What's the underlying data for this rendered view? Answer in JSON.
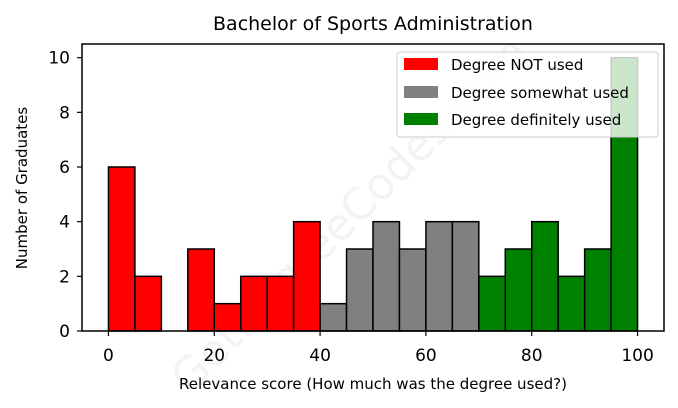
{
  "chart_data": {
    "type": "bar",
    "title": "Bachelor of Sports Administration",
    "xlabel": "Relevance score (How much was the degree used?)",
    "ylabel": "Number of Graduates",
    "xlim": [
      -5,
      105
    ],
    "ylim": [
      0,
      10.5
    ],
    "xticks": [
      0,
      20,
      40,
      60,
      80,
      100
    ],
    "yticks": [
      0,
      2,
      4,
      6,
      8,
      10
    ],
    "bin_width": 5,
    "grid": false,
    "legend_position": "top-right",
    "series": [
      {
        "name": "Degree NOT used",
        "color": "#ff0000",
        "bin_starts": [
          0,
          5,
          10,
          15,
          20,
          25,
          30,
          35
        ],
        "values": [
          6,
          2,
          0,
          3,
          1,
          2,
          2,
          4
        ]
      },
      {
        "name": "Degree somewhat used",
        "color": "#808080",
        "bin_starts": [
          40,
          45,
          50,
          55,
          60,
          65
        ],
        "values": [
          1,
          3,
          4,
          3,
          4,
          4
        ]
      },
      {
        "name": "Degree definitely used",
        "color": "#008000",
        "bin_starts": [
          70,
          75,
          80,
          85,
          90,
          95
        ],
        "values": [
          2,
          3,
          4,
          2,
          3,
          10
        ]
      }
    ]
  },
  "watermark": "GetDegreeCodes.com"
}
